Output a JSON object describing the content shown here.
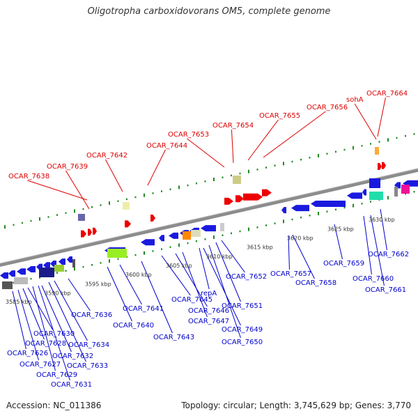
{
  "title": "Oligotropha carboxidovorans OM5, complete genome",
  "footer": {
    "accession": "Accession: NC_011386",
    "summary": "Topology: circular; Length: 3,745,629 bp; Genes: 3,770"
  },
  "colors": {
    "forward_label": "#dd0000",
    "reverse_label": "#0000cc",
    "forward_gene": "#ee0000",
    "reverse_gene": "#1a1adf",
    "backbone": "#8c8c8c",
    "tick": "#228b22"
  },
  "scale_labels": [
    "3585 kbp",
    "3590 kbp",
    "3595 kbp",
    "3600 kbp",
    "3605 kbp",
    "3610 kbp",
    "3615 kbp",
    "3620 kbp",
    "3625 kbp",
    "3630 kbp"
  ],
  "top_labels": [
    "OCAR_7638",
    "OCAR_7639",
    "OCAR_7642",
    "OCAR_7644",
    "OCAR_7653",
    "OCAR_7654",
    "OCAR_7655",
    "OCAR_7656",
    "sohA",
    "OCAR_7664"
  ],
  "bottom_labels": [
    "OCAR_7630",
    "OCAR_7628",
    "OCAR_7626",
    "OCAR_7632",
    "OCAR_7627",
    "OCAR_7634",
    "OCAR_7633",
    "OCAR_7629",
    "OCAR_7631",
    "OCAR_7636",
    "OCAR_7641",
    "OCAR_7640",
    "OCAR_7643",
    "OCAR_7645",
    "OCAR_7646",
    "repA",
    "OCAR_7647",
    "OCAR_7649",
    "OCAR_7650",
    "OCAR_7651",
    "OCAR_7652",
    "OCAR_7657",
    "OCAR_7658",
    "OCAR_7659",
    "OCAR_7660",
    "OCAR_7661",
    "OCAR_7662"
  ]
}
